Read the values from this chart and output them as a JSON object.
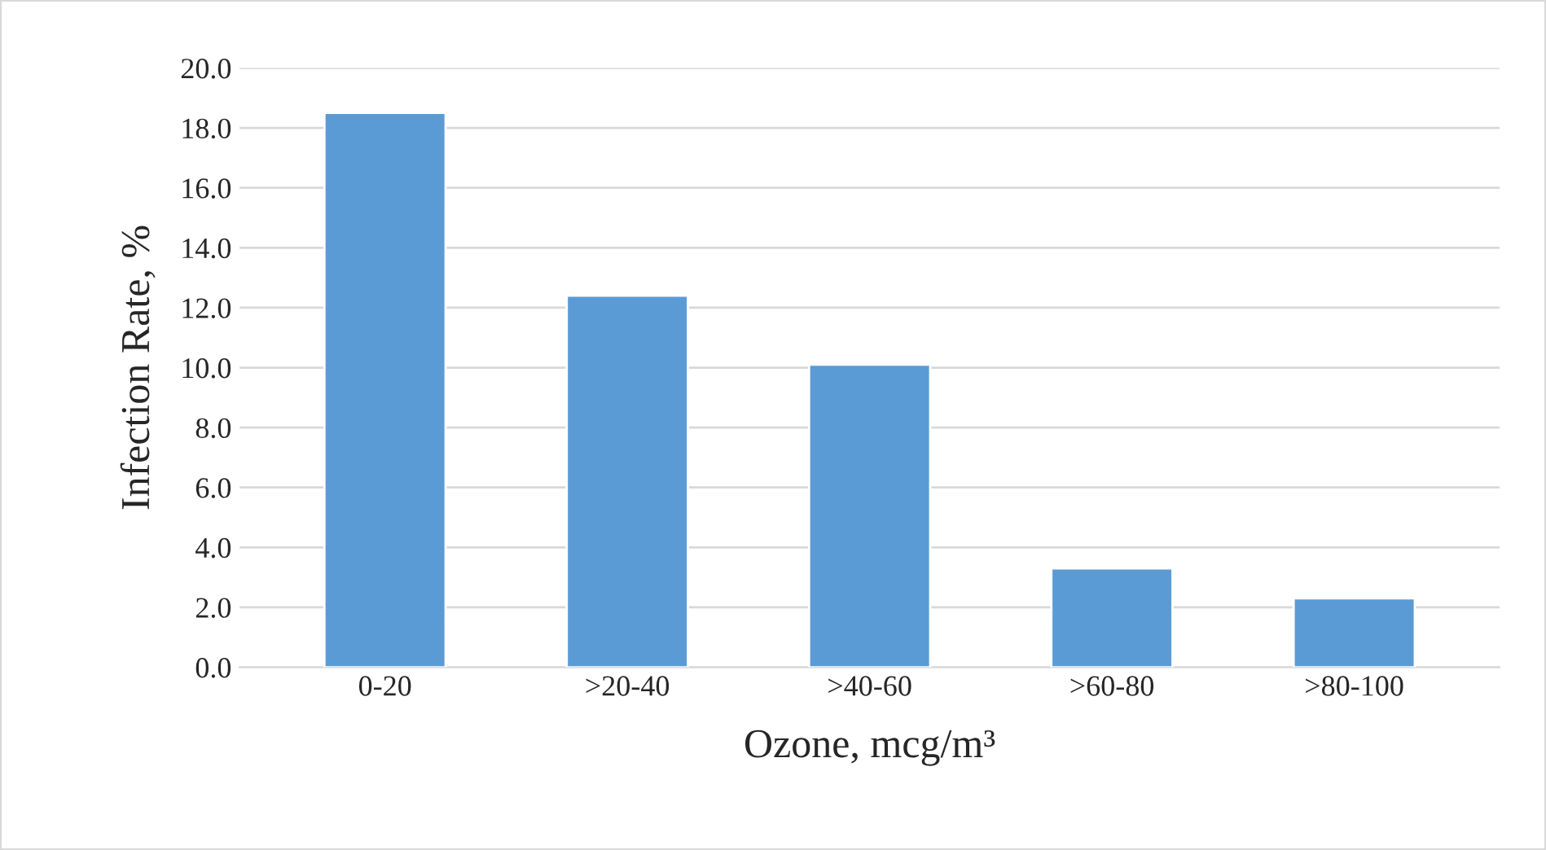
{
  "chart_data": {
    "type": "bar",
    "xlabel": "Ozone, mcg/m³",
    "ylabel": "Infection Rate, %",
    "categories": [
      "0-20",
      ">20-40",
      ">40-60",
      ">60-80",
      ">80-100"
    ],
    "values": [
      18.5,
      12.4,
      10.1,
      3.3,
      2.3
    ],
    "color": "#5b9bd5",
    "ylim": [
      0,
      20
    ],
    "yticks": [
      {
        "value": 0,
        "label": "0.0"
      },
      {
        "value": 2,
        "label": "2.0"
      },
      {
        "value": 4,
        "label": "4.0"
      },
      {
        "value": 6,
        "label": "6.0"
      },
      {
        "value": 8,
        "label": "8.0"
      },
      {
        "value": 10,
        "label": "10.0"
      },
      {
        "value": 12,
        "label": "12.0"
      },
      {
        "value": 14,
        "label": "14.0"
      },
      {
        "value": 16,
        "label": "16.0"
      },
      {
        "value": 18,
        "label": "18.0"
      },
      {
        "value": 20,
        "label": "20.0"
      }
    ],
    "grid": "y"
  }
}
